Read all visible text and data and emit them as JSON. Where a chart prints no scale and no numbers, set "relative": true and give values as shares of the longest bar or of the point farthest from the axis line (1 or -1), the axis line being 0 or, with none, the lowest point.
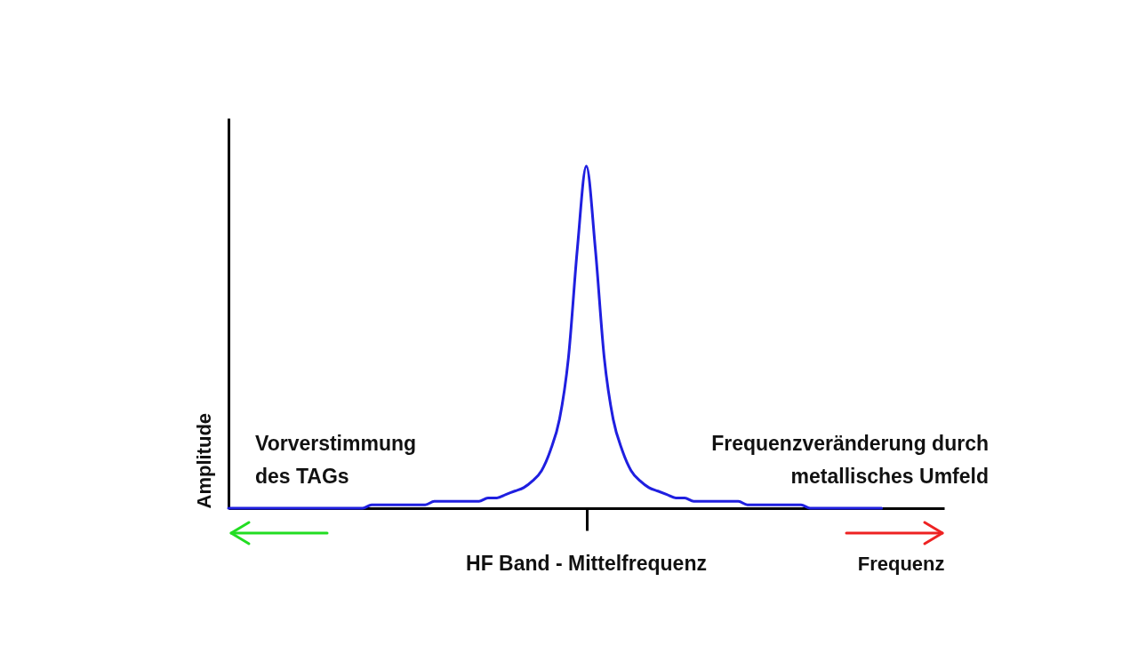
{
  "chart_data": {
    "type": "line",
    "relative": true,
    "xlabel": "Frequenz",
    "ylabel": "Amplitude",
    "categories": [
      null,
      null,
      null,
      null,
      null,
      null,
      null,
      null,
      null,
      null,
      null,
      null,
      null,
      null,
      null,
      null,
      null,
      null,
      null,
      null,
      null,
      null,
      null,
      null,
      null,
      null,
      null,
      null,
      null,
      null,
      null,
      null,
      null,
      null,
      null,
      null,
      null,
      null,
      null,
      null,
      null,
      null,
      null,
      null,
      null,
      null,
      null,
      null,
      null,
      null,
      null,
      null,
      null,
      null,
      null,
      null,
      null,
      null,
      null,
      null,
      null,
      null,
      null,
      null,
      null,
      null,
      null,
      null,
      null,
      null,
      null,
      null,
      null,
      null,
      null,
      null,
      null,
      null,
      null,
      null,
      null
    ],
    "series": [
      {
        "color": "#1f1fe0",
        "values": [
          0,
          0,
          0,
          0,
          0,
          0,
          0,
          0,
          0,
          0,
          0,
          0,
          0,
          0,
          0,
          0,
          0.01,
          0.01,
          0.01,
          0.01,
          0.01,
          0.01,
          0.01,
          0.02,
          0.02,
          0.02,
          0.02,
          0.02,
          0.02,
          0.03,
          0.03,
          0.04,
          0.05,
          0.06,
          0.08,
          0.11,
          0.17,
          0.26,
          0.44,
          0.76,
          1,
          0.76,
          0.44,
          0.26,
          0.17,
          0.11,
          0.08,
          0.06,
          0.05,
          0.04,
          0.03,
          0.03,
          0.02,
          0.02,
          0.02,
          0.02,
          0.02,
          0.02,
          0.01,
          0.01,
          0.01,
          0.01,
          0.01,
          0.01,
          0.01,
          0,
          0,
          0,
          0,
          0,
          0,
          0,
          0,
          0,
          null,
          null,
          null,
          null,
          null,
          null,
          null
        ]
      }
    ],
    "annotations": [
      "Vorverstimmung\ndes TAGs",
      "Frequenzveränderung durch\nmetallisches Umfeld",
      "HF Band - Mittelfrequenz"
    ]
  }
}
